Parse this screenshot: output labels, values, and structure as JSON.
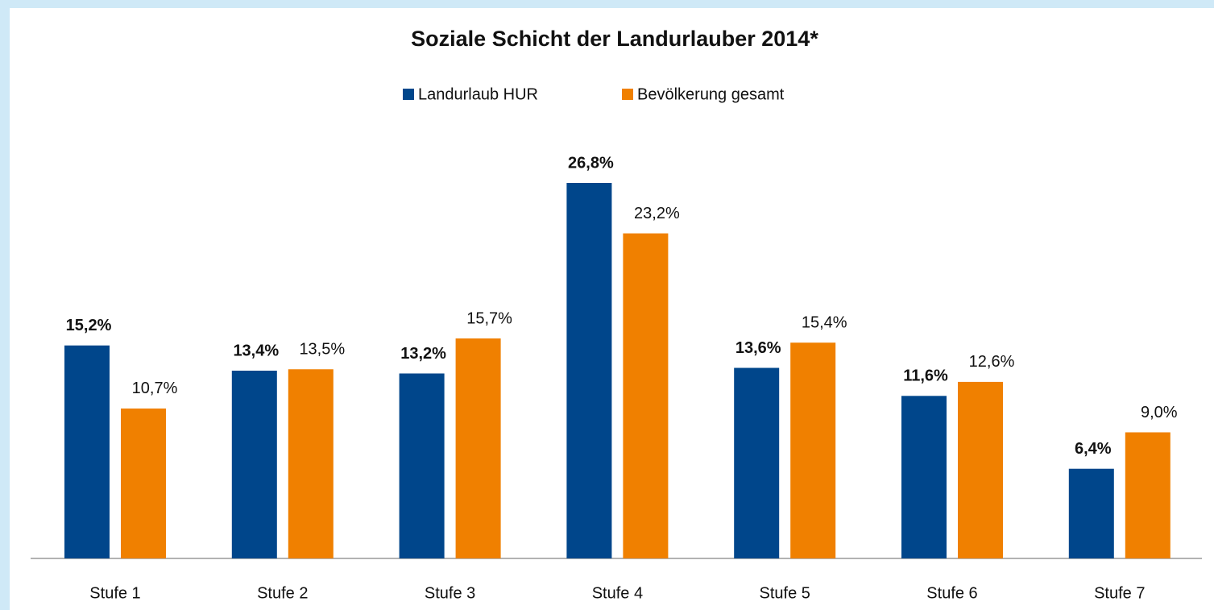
{
  "chart_data": {
    "type": "bar",
    "title": "Soziale Schicht der Landurlauber 2014*",
    "categories": [
      "Stufe 1",
      "Stufe 2",
      "Stufe 3",
      "Stufe 4",
      "Stufe 5",
      "Stufe 6",
      "Stufe 7"
    ],
    "series": [
      {
        "name": "Landurlaub HUR",
        "color": "#00468b",
        "values": [
          15.2,
          13.4,
          13.2,
          26.8,
          13.6,
          11.6,
          6.4
        ],
        "value_labels": [
          "15,2%",
          "13,4%",
          "13,2%",
          "26,8%",
          "13,6%",
          "11,6%",
          "6,4%"
        ]
      },
      {
        "name": "Bevölkerung gesamt",
        "color": "#f08000",
        "values": [
          10.7,
          13.5,
          15.7,
          23.2,
          15.4,
          12.6,
          9.0
        ],
        "value_labels": [
          "10,7%",
          "13,5%",
          "15,7%",
          "23,2%",
          "15,4%",
          "12,6%",
          "9,0%"
        ]
      }
    ]
  }
}
